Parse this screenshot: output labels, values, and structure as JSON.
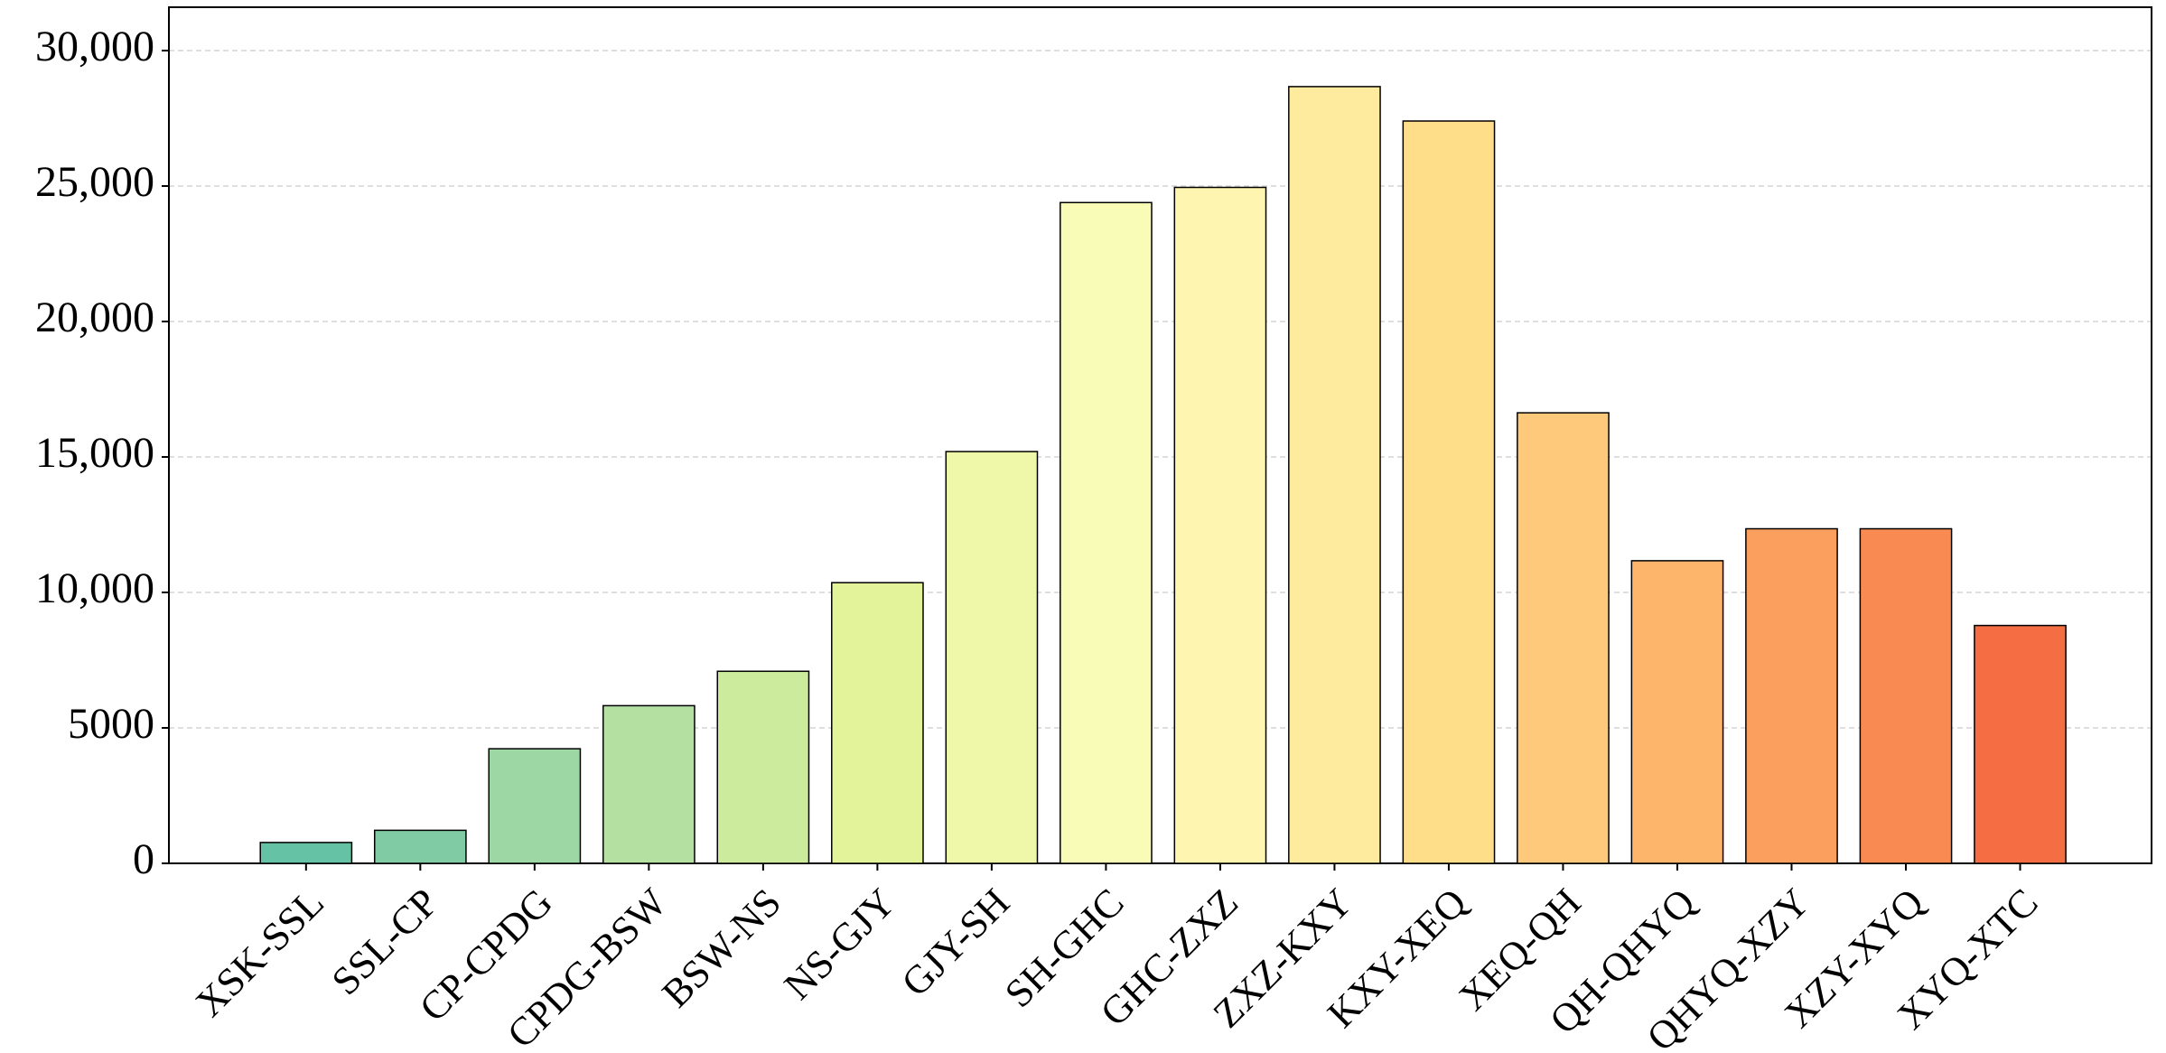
{
  "chart_data": {
    "type": "bar",
    "categories": [
      "XSK-SSL",
      "SSL-CP",
      "CP-CPDG",
      "CPDG-BSW",
      "BSW-NS",
      "NS-GJY",
      "GJY-SH",
      "SH-GHC",
      "GHC-ZXZ",
      "ZXZ-KXY",
      "KXY-XEQ",
      "XEQ-QH",
      "QH-QHYQ",
      "QHYQ-XZY",
      "XZY-XYQ",
      "XYQ-XTC"
    ],
    "values": [
      770,
      1220,
      4230,
      5820,
      7090,
      10360,
      15200,
      24390,
      24950,
      28670,
      27400,
      16630,
      11170,
      12350,
      12350,
      8780
    ],
    "colors": [
      "#66c2a5",
      "#80cba4",
      "#9dd7a4",
      "#b4e0a2",
      "#cdeb9d",
      "#e2f39a",
      "#eef8a8",
      "#f9fcb6",
      "#fef5b0",
      "#feeb9e",
      "#fede89",
      "#fec97a",
      "#fdb56b",
      "#fb9f5e",
      "#f88a52",
      "#f46d43"
    ],
    "ylim": [
      0,
      31600
    ],
    "yticks": [
      0,
      5000,
      {
        "value": 10000,
        "label": "10,000"
      },
      {
        "value": 15000,
        "label": "15,000"
      },
      {
        "value": 20000,
        "label": "20,000"
      },
      {
        "value": 25000,
        "label": "25,000"
      },
      {
        "value": 30000,
        "label": "30,000"
      }
    ],
    "grid": true
  }
}
